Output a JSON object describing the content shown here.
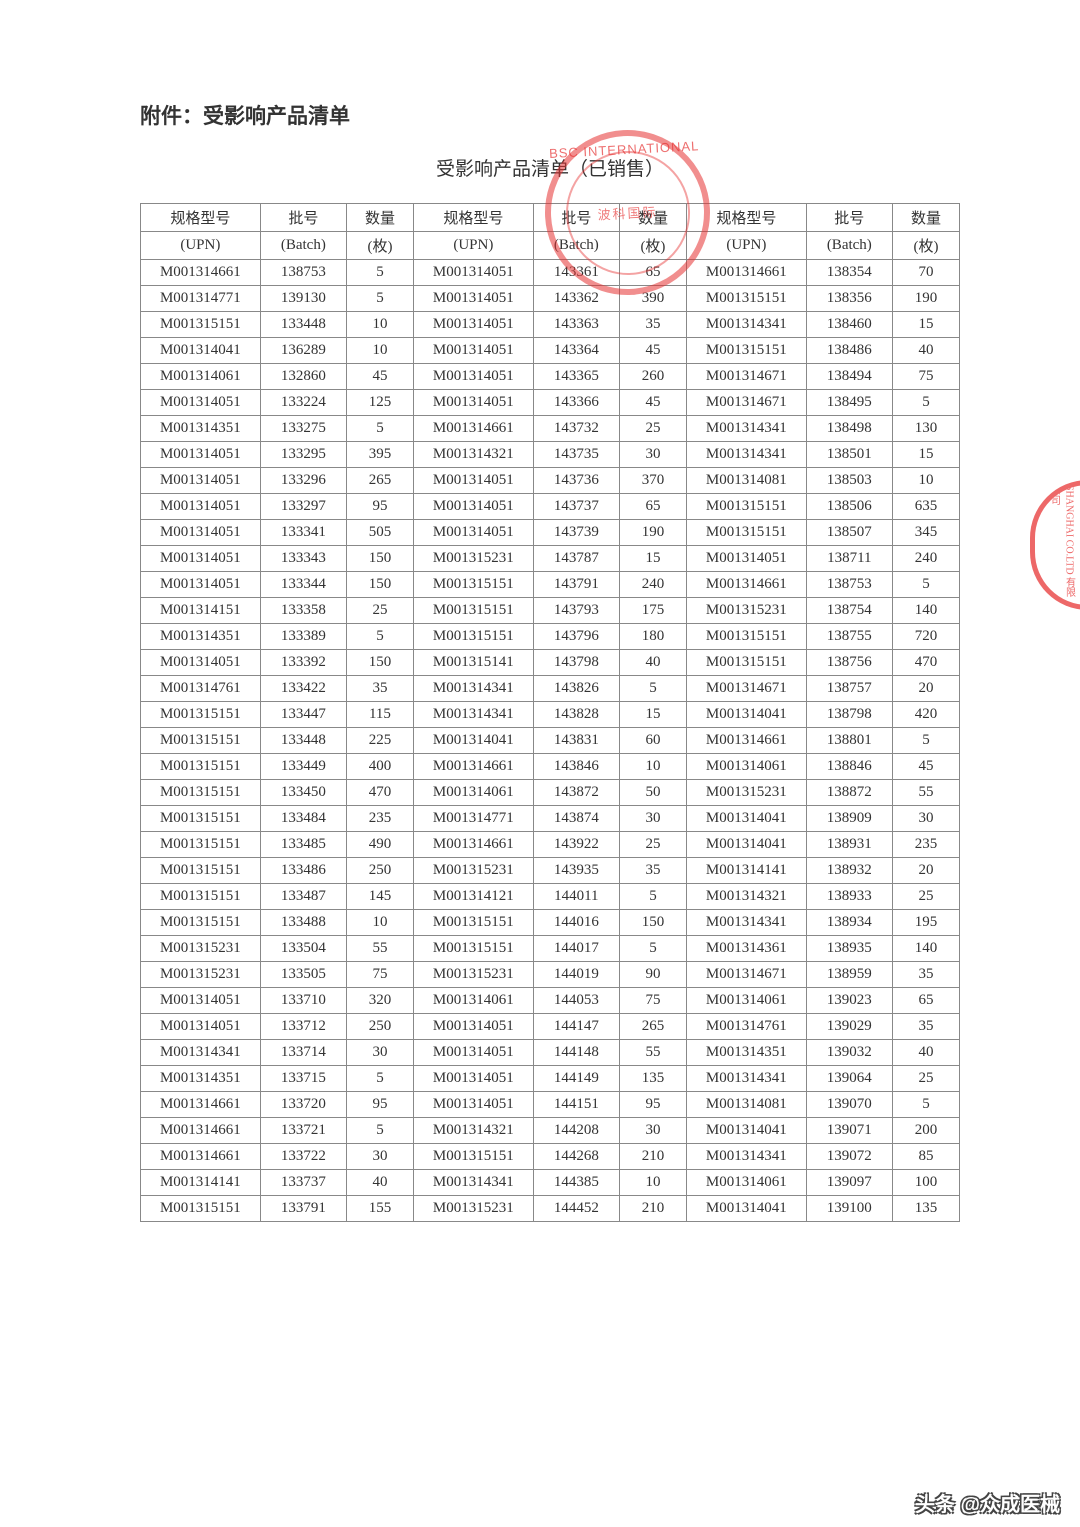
{
  "attachment_label": "附件：受影响产品清单",
  "title": "受影响产品清单（已销售）",
  "stamp": {
    "outer": "BSC INTERNATIONAL",
    "center": "波科国际"
  },
  "side_stamp": "SHANGHAI CO.LTD 有限公司",
  "footer": "头条 @众成医械",
  "headers": {
    "upn_cn": "规格型号",
    "upn_en": "(UPN)",
    "batch_cn": "批号",
    "batch_en": "(Batch)",
    "qty_cn": "数量",
    "qty_en": "(枚)"
  },
  "table": {
    "columns": [
      "upn",
      "batch",
      "qty",
      "upn",
      "batch",
      "qty",
      "upn",
      "batch",
      "qty"
    ],
    "rows": [
      [
        "M001314661",
        "138753",
        "5",
        "M001314051",
        "143361",
        "65",
        "M001314661",
        "138354",
        "70"
      ],
      [
        "M001314771",
        "139130",
        "5",
        "M001314051",
        "143362",
        "390",
        "M001315151",
        "138356",
        "190"
      ],
      [
        "M001315151",
        "133448",
        "10",
        "M001314051",
        "143363",
        "35",
        "M001314341",
        "138460",
        "15"
      ],
      [
        "M001314041",
        "136289",
        "10",
        "M001314051",
        "143364",
        "45",
        "M001315151",
        "138486",
        "40"
      ],
      [
        "M001314061",
        "132860",
        "45",
        "M001314051",
        "143365",
        "260",
        "M001314671",
        "138494",
        "75"
      ],
      [
        "M001314051",
        "133224",
        "125",
        "M001314051",
        "143366",
        "45",
        "M001314671",
        "138495",
        "5"
      ],
      [
        "M001314351",
        "133275",
        "5",
        "M001314661",
        "143732",
        "25",
        "M001314341",
        "138498",
        "130"
      ],
      [
        "M001314051",
        "133295",
        "395",
        "M001314321",
        "143735",
        "30",
        "M001314341",
        "138501",
        "15"
      ],
      [
        "M001314051",
        "133296",
        "265",
        "M001314051",
        "143736",
        "370",
        "M001314081",
        "138503",
        "10"
      ],
      [
        "M001314051",
        "133297",
        "95",
        "M001314051",
        "143737",
        "65",
        "M001315151",
        "138506",
        "635"
      ],
      [
        "M001314051",
        "133341",
        "505",
        "M001314051",
        "143739",
        "190",
        "M001315151",
        "138507",
        "345"
      ],
      [
        "M001314051",
        "133343",
        "150",
        "M001315231",
        "143787",
        "15",
        "M001314051",
        "138711",
        "240"
      ],
      [
        "M001314051",
        "133344",
        "150",
        "M001315151",
        "143791",
        "240",
        "M001314661",
        "138753",
        "5"
      ],
      [
        "M001314151",
        "133358",
        "25",
        "M001315151",
        "143793",
        "175",
        "M001315231",
        "138754",
        "140"
      ],
      [
        "M001314351",
        "133389",
        "5",
        "M001315151",
        "143796",
        "180",
        "M001315151",
        "138755",
        "720"
      ],
      [
        "M001314051",
        "133392",
        "150",
        "M001315141",
        "143798",
        "40",
        "M001315151",
        "138756",
        "470"
      ],
      [
        "M001314761",
        "133422",
        "35",
        "M001314341",
        "143826",
        "5",
        "M001314671",
        "138757",
        "20"
      ],
      [
        "M001315151",
        "133447",
        "115",
        "M001314341",
        "143828",
        "15",
        "M001314041",
        "138798",
        "420"
      ],
      [
        "M001315151",
        "133448",
        "225",
        "M001314041",
        "143831",
        "60",
        "M001314661",
        "138801",
        "5"
      ],
      [
        "M001315151",
        "133449",
        "400",
        "M001314661",
        "143846",
        "10",
        "M001314061",
        "138846",
        "45"
      ],
      [
        "M001315151",
        "133450",
        "470",
        "M001314061",
        "143872",
        "50",
        "M001315231",
        "138872",
        "55"
      ],
      [
        "M001315151",
        "133484",
        "235",
        "M001314771",
        "143874",
        "30",
        "M001314041",
        "138909",
        "30"
      ],
      [
        "M001315151",
        "133485",
        "490",
        "M001314661",
        "143922",
        "25",
        "M001314041",
        "138931",
        "235"
      ],
      [
        "M001315151",
        "133486",
        "250",
        "M001315231",
        "143935",
        "35",
        "M001314141",
        "138932",
        "20"
      ],
      [
        "M001315151",
        "133487",
        "145",
        "M001314121",
        "144011",
        "5",
        "M001314321",
        "138933",
        "25"
      ],
      [
        "M001315151",
        "133488",
        "10",
        "M001315151",
        "144016",
        "150",
        "M001314341",
        "138934",
        "195"
      ],
      [
        "M001315231",
        "133504",
        "55",
        "M001315151",
        "144017",
        "5",
        "M001314361",
        "138935",
        "140"
      ],
      [
        "M001315231",
        "133505",
        "75",
        "M001315231",
        "144019",
        "90",
        "M001314671",
        "138959",
        "35"
      ],
      [
        "M001314051",
        "133710",
        "320",
        "M001314061",
        "144053",
        "75",
        "M001314061",
        "139023",
        "65"
      ],
      [
        "M001314051",
        "133712",
        "250",
        "M001314051",
        "144147",
        "265",
        "M001314761",
        "139029",
        "35"
      ],
      [
        "M001314341",
        "133714",
        "30",
        "M001314051",
        "144148",
        "55",
        "M001314351",
        "139032",
        "40"
      ],
      [
        "M001314351",
        "133715",
        "5",
        "M001314051",
        "144149",
        "135",
        "M001314341",
        "139064",
        "25"
      ],
      [
        "M001314661",
        "133720",
        "95",
        "M001314051",
        "144151",
        "95",
        "M001314081",
        "139070",
        "5"
      ],
      [
        "M001314661",
        "133721",
        "5",
        "M001314321",
        "144208",
        "30",
        "M001314041",
        "139071",
        "200"
      ],
      [
        "M001314661",
        "133722",
        "30",
        "M001315151",
        "144268",
        "210",
        "M001314341",
        "139072",
        "85"
      ],
      [
        "M001314141",
        "133737",
        "40",
        "M001314341",
        "144385",
        "10",
        "M001314061",
        "139097",
        "100"
      ],
      [
        "M001315151",
        "133791",
        "155",
        "M001315231",
        "144452",
        "210",
        "M001314041",
        "139100",
        "135"
      ]
    ]
  }
}
